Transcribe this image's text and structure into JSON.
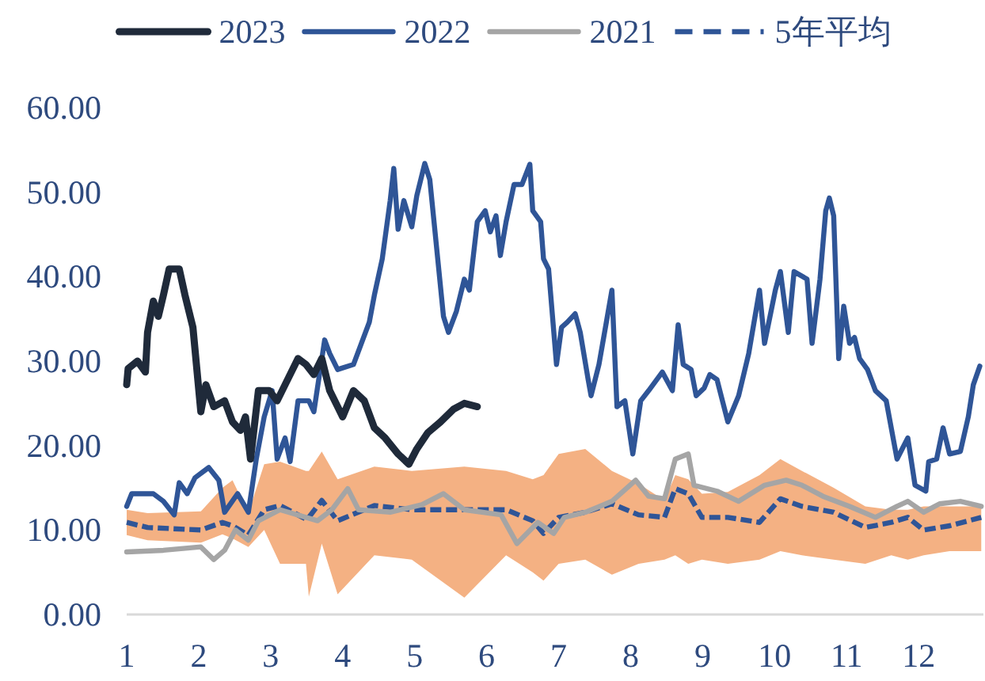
{
  "chart_data": {
    "type": "line",
    "legend": "top",
    "line_style": "solid",
    "xlim": [
      1,
      12.9
    ],
    "xticks": [
      1,
      2,
      3,
      4,
      5,
      6,
      7,
      8,
      9,
      10,
      11,
      12
    ],
    "ylim": [
      0,
      60
    ],
    "yticks": [
      {
        "value": 0,
        "label": "0.00"
      },
      {
        "value": 10,
        "label": "10.00"
      },
      {
        "value": 20,
        "label": "20.00"
      },
      {
        "value": 30,
        "label": "30.00"
      },
      {
        "value": 40,
        "label": "40.00"
      },
      {
        "value": 50,
        "label": "50.00"
      },
      {
        "value": 60,
        "label": "60.00"
      }
    ],
    "series": [
      {
        "name": "2023",
        "color": "#1f2a3a",
        "x": [
          1.0,
          1.02,
          1.15,
          1.26,
          1.29,
          1.37,
          1.44,
          1.51,
          1.59,
          1.73,
          1.81,
          1.92,
          2.03,
          2.1,
          2.21,
          2.36,
          2.47,
          2.58,
          2.65,
          2.72,
          2.83,
          2.98,
          3.09,
          3.2,
          3.38,
          3.49,
          3.6,
          3.71,
          3.82,
          4.0,
          4.15,
          4.3,
          4.44,
          4.59,
          4.77,
          4.92,
          5.03,
          5.18,
          5.36,
          5.54,
          5.69,
          5.87
        ],
        "values": [
          27.2,
          29.1,
          30.0,
          28.7,
          33.4,
          37.1,
          35.3,
          37.8,
          40.9,
          40.9,
          37.8,
          34.0,
          24.0,
          27.2,
          24.6,
          25.3,
          22.8,
          21.8,
          23.4,
          18.4,
          26.5,
          26.5,
          25.3,
          27.2,
          30.3,
          29.6,
          28.4,
          30.3,
          26.5,
          23.4,
          26.5,
          25.3,
          22.1,
          20.9,
          19.0,
          17.8,
          19.6,
          21.5,
          22.8,
          24.3,
          25.0,
          24.6
        ]
      },
      {
        "name": "2022",
        "color": "#2f5597",
        "x": [
          1.0,
          1.07,
          1.37,
          1.51,
          1.66,
          1.73,
          1.84,
          1.95,
          2.14,
          2.28,
          2.36,
          2.54,
          2.69,
          2.8,
          2.91,
          3.02,
          3.09,
          3.2,
          3.27,
          3.38,
          3.53,
          3.6,
          3.75,
          3.82,
          3.93,
          4.15,
          4.26,
          4.37,
          4.44,
          4.55,
          4.66,
          4.71,
          4.77,
          4.85,
          4.96,
          5.03,
          5.14,
          5.21,
          5.29,
          5.4,
          5.47,
          5.58,
          5.69,
          5.76,
          5.87,
          5.98,
          6.05,
          6.13,
          6.19,
          6.27,
          6.38,
          6.49,
          6.6,
          6.64,
          6.75,
          6.79,
          6.86,
          6.97,
          7.04,
          7.12,
          7.23,
          7.3,
          7.41,
          7.45,
          7.56,
          7.74,
          7.81,
          7.92,
          8.03,
          8.14,
          8.25,
          8.44,
          8.58,
          8.66,
          8.73,
          8.84,
          8.91,
          9.02,
          9.1,
          9.2,
          9.35,
          9.5,
          9.64,
          9.79,
          9.86,
          10.01,
          10.08,
          10.19,
          10.27,
          10.45,
          10.52,
          10.63,
          10.71,
          10.76,
          10.82,
          10.89,
          10.96,
          11.04,
          11.11,
          11.18,
          11.29,
          11.4,
          11.55,
          11.7,
          11.85,
          11.95,
          12.1,
          12.14,
          12.25,
          12.34,
          12.43,
          12.58,
          12.69,
          12.76,
          12.85
        ],
        "values": [
          12.8,
          14.3,
          14.3,
          13.4,
          11.8,
          15.6,
          14.3,
          16.2,
          17.4,
          15.9,
          12.1,
          14.3,
          12.1,
          18.4,
          23.4,
          26.5,
          18.4,
          20.9,
          18.1,
          25.3,
          25.3,
          24.0,
          32.5,
          30.9,
          29.0,
          29.6,
          32.1,
          34.6,
          37.8,
          42.1,
          49.0,
          52.8,
          45.6,
          49.0,
          45.9,
          49.6,
          53.4,
          51.5,
          44.7,
          35.3,
          33.4,
          35.9,
          39.7,
          38.4,
          46.5,
          47.8,
          45.3,
          47.2,
          42.5,
          46.5,
          50.9,
          50.9,
          53.3,
          47.8,
          46.5,
          42.1,
          40.9,
          29.6,
          34.0,
          34.6,
          35.6,
          33.4,
          27.8,
          25.9,
          29.6,
          38.4,
          24.6,
          25.3,
          19.0,
          25.3,
          26.5,
          28.7,
          26.5,
          34.3,
          29.6,
          29.0,
          25.9,
          26.8,
          28.4,
          27.8,
          22.8,
          25.9,
          30.9,
          38.4,
          32.1,
          38.4,
          40.6,
          33.4,
          40.6,
          39.7,
          32.1,
          39.7,
          47.8,
          49.3,
          47.2,
          30.3,
          36.5,
          32.1,
          32.8,
          30.3,
          29.0,
          26.5,
          25.3,
          18.4,
          20.9,
          15.3,
          14.6,
          18.1,
          18.4,
          22.1,
          19.0,
          19.3,
          23.4,
          27.2,
          29.4
        ]
      },
      {
        "name": "2021",
        "color": "#a5a5a5",
        "x": [
          1.0,
          1.51,
          2.03,
          2.21,
          2.36,
          2.51,
          2.69,
          2.83,
          3.13,
          3.65,
          3.85,
          4.07,
          4.22,
          4.66,
          5.1,
          5.4,
          5.69,
          6.2,
          6.42,
          6.71,
          6.93,
          7.08,
          7.37,
          7.74,
          8.07,
          8.25,
          8.47,
          8.62,
          8.8,
          8.88,
          9.2,
          9.5,
          9.86,
          10.16,
          10.38,
          10.67,
          11.04,
          11.4,
          11.7,
          11.85,
          12.07,
          12.29,
          12.58,
          12.87
        ],
        "values": [
          7.4,
          7.6,
          8.0,
          6.5,
          7.6,
          10.0,
          8.8,
          11.1,
          12.4,
          11.1,
          12.4,
          14.9,
          12.4,
          12.1,
          13.0,
          14.3,
          12.4,
          11.8,
          8.4,
          10.9,
          9.6,
          11.5,
          12.1,
          13.4,
          15.9,
          14.0,
          13.7,
          18.4,
          19.0,
          15.3,
          14.6,
          13.4,
          15.3,
          15.9,
          15.3,
          14.0,
          12.8,
          11.5,
          12.8,
          13.4,
          12.1,
          13.1,
          13.4,
          12.8
        ]
      },
      {
        "name": "5年平均",
        "color": "#2f5597",
        "line_style": "dashed",
        "x": [
          1.0,
          1.29,
          2.03,
          2.33,
          2.47,
          2.69,
          2.91,
          3.13,
          3.49,
          3.53,
          3.71,
          3.93,
          4.44,
          4.96,
          5.69,
          6.27,
          6.64,
          6.79,
          7.0,
          7.37,
          7.74,
          8.11,
          8.47,
          8.62,
          8.8,
          8.99,
          9.35,
          9.79,
          10.08,
          10.38,
          10.82,
          11.26,
          11.62,
          11.85,
          12.07,
          12.43,
          12.87
        ],
        "values": [
          10.9,
          10.3,
          10.0,
          10.9,
          10.5,
          9.4,
          12.4,
          12.9,
          11.3,
          11.5,
          13.5,
          11.1,
          12.9,
          12.4,
          12.4,
          12.4,
          11.1,
          9.6,
          11.5,
          12.1,
          13.1,
          11.8,
          11.5,
          14.9,
          14.3,
          11.5,
          11.5,
          10.9,
          13.7,
          12.8,
          12.1,
          10.3,
          10.9,
          11.5,
          10.0,
          10.5,
          11.5
        ],
        "lower": [
          9.4,
          8.8,
          8.5,
          9.5,
          9.0,
          8.0,
          10.0,
          6.0,
          6.0,
          2.1,
          8.4,
          2.4,
          7.0,
          6.5,
          2.0,
          7.0,
          5.0,
          4.0,
          6.0,
          6.5,
          4.7,
          6.0,
          6.5,
          7.0,
          6.0,
          6.5,
          6.0,
          6.5,
          7.5,
          7.0,
          6.5,
          6.0,
          7.0,
          6.5,
          7.0,
          7.5,
          7.5
        ],
        "upper": [
          12.4,
          12.0,
          12.2,
          15.0,
          15.9,
          12.0,
          17.8,
          18.1,
          17.0,
          17.0,
          19.3,
          16.0,
          17.5,
          17.0,
          17.5,
          17.0,
          16.0,
          16.5,
          19.0,
          19.6,
          17.0,
          15.5,
          13.5,
          16.5,
          16.0,
          14.3,
          14.5,
          16.5,
          18.4,
          17.0,
          15.0,
          12.8,
          12.4,
          12.4,
          12.8,
          12.8,
          12.8
        ]
      }
    ]
  }
}
